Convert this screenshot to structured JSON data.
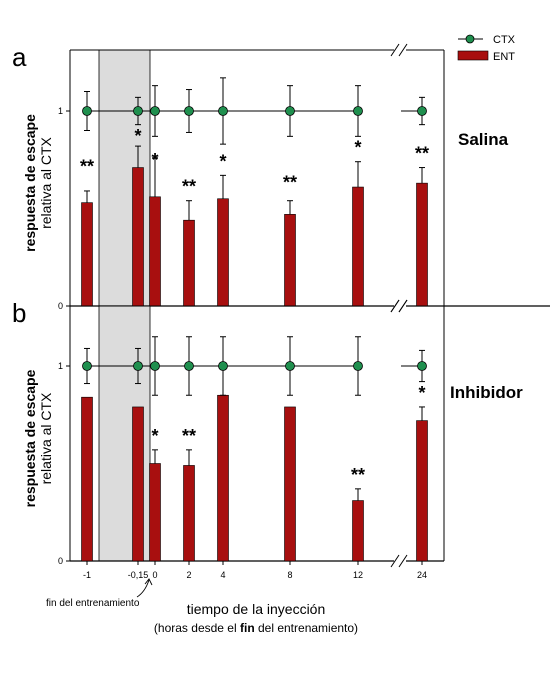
{
  "legend": {
    "ctx": "CTX",
    "ent": "ENT"
  },
  "colors": {
    "bar": "#a80f0f",
    "point": "#1f8f4e",
    "shade": "#dcdcdc"
  },
  "x_axis": {
    "title": "tiempo de la inyección",
    "subtitle_pre": "(horas desde el ",
    "subtitle_bold": "fin",
    "subtitle_post": " del entrenamiento)",
    "note": "fin del entrenamiento"
  },
  "chart_data": [
    {
      "panel": "a",
      "type": "bar",
      "condition": "Salina",
      "ylabel_bold": "respuesta de escape",
      "ylabel": "relativa al CTX",
      "ylim": [
        0,
        1.3
      ],
      "yticks": [
        "0",
        "1"
      ],
      "categories": [
        "-1",
        "-0,15",
        "0",
        "2",
        "4",
        "8",
        "12",
        "24"
      ],
      "shaded_category_range": [
        "-0,15",
        "0"
      ],
      "axis_break": "between 12 and 24",
      "series": [
        {
          "name": "ENT",
          "values": [
            0.53,
            0.71,
            0.56,
            0.44,
            0.55,
            0.47,
            0.61,
            0.63
          ],
          "errors": [
            0.06,
            0.11,
            0.2,
            0.1,
            0.12,
            0.07,
            0.13,
            0.08
          ]
        },
        {
          "name": "CTX",
          "values": [
            1,
            1,
            1,
            1,
            1,
            1,
            1,
            1
          ],
          "errors": [
            0.1,
            0.07,
            0.13,
            0.11,
            0.17,
            0.13,
            0.13,
            0.07
          ]
        }
      ],
      "significance": [
        "**",
        "*",
        "*",
        "**",
        "*",
        "**",
        "*",
        "**"
      ]
    },
    {
      "panel": "b",
      "type": "bar",
      "condition": "Inhibidor",
      "ylabel_bold": "respuesta de escape",
      "ylabel": "relativa al CTX",
      "ylim": [
        0,
        1.3
      ],
      "yticks": [
        "0",
        "1"
      ],
      "categories": [
        "-1",
        "-0,15",
        "0",
        "2",
        "4",
        "8",
        "12",
        "24"
      ],
      "shaded_category_range": [
        "-0,15",
        "0"
      ],
      "axis_break": "between 12 and 24",
      "series": [
        {
          "name": "ENT",
          "values": [
            0.84,
            0.79,
            0.5,
            0.49,
            0.85,
            0.79,
            0.31,
            0.72
          ],
          "errors": [
            0,
            0,
            0.07,
            0.08,
            0,
            0,
            0.06,
            0.07
          ]
        },
        {
          "name": "CTX",
          "values": [
            1,
            1,
            1,
            1,
            1,
            1,
            1,
            1
          ],
          "errors": [
            0.09,
            0.09,
            0.15,
            0.15,
            0.15,
            0.15,
            0.15,
            0.08
          ]
        }
      ],
      "significance": [
        "",
        "",
        "*",
        "**",
        "",
        "",
        "**",
        "*"
      ]
    }
  ]
}
